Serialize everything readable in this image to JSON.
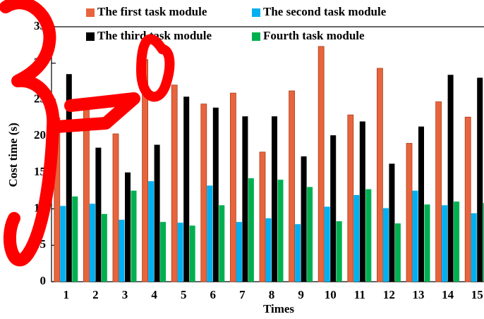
{
  "chart_data": {
    "type": "bar",
    "x_label": "Times",
    "y_label": "Cost time (s)",
    "categories": [
      "1",
      "2",
      "3",
      "4",
      "5",
      "6",
      "7",
      "8",
      "9",
      "10",
      "11",
      "12",
      "13",
      "14",
      "15"
    ],
    "series": [
      {
        "name": "The first task module",
        "color": "#e8643c",
        "values": [
          22.5,
          24.1,
          20.3,
          30.5,
          27,
          24.4,
          25.9,
          17.8,
          26.2,
          32.3,
          22.9,
          29.3,
          19,
          24.7,
          22.6
        ]
      },
      {
        "name": "The second task module",
        "color": "#00b0f0",
        "values": [
          10.4,
          10.7,
          8.5,
          13.8,
          8.1,
          13.2,
          8.2,
          8.7,
          7.9,
          10.3,
          11.9,
          10.1,
          12.5,
          10.5,
          9.4
        ]
      },
      {
        "name": "The third task module",
        "color": "#000000",
        "values": [
          28.5,
          18.4,
          15,
          18.8,
          25.4,
          23.9,
          22.7,
          22.7,
          17.2,
          20.1,
          22,
          16.2,
          21.3,
          28.4,
          28
        ]
      },
      {
        "name": "Fourth task module",
        "color": "#00b050",
        "values": [
          11.7,
          9.3,
          12.5,
          8.2,
          7.7,
          10.5,
          14.2,
          14,
          13,
          8.3,
          12.7,
          8,
          10.6,
          11,
          10.8
        ]
      }
    ],
    "ylim": [
      0,
      35
    ],
    "yticks": [
      0,
      5,
      10,
      15,
      20,
      25,
      30,
      35
    ],
    "legend": "top"
  }
}
